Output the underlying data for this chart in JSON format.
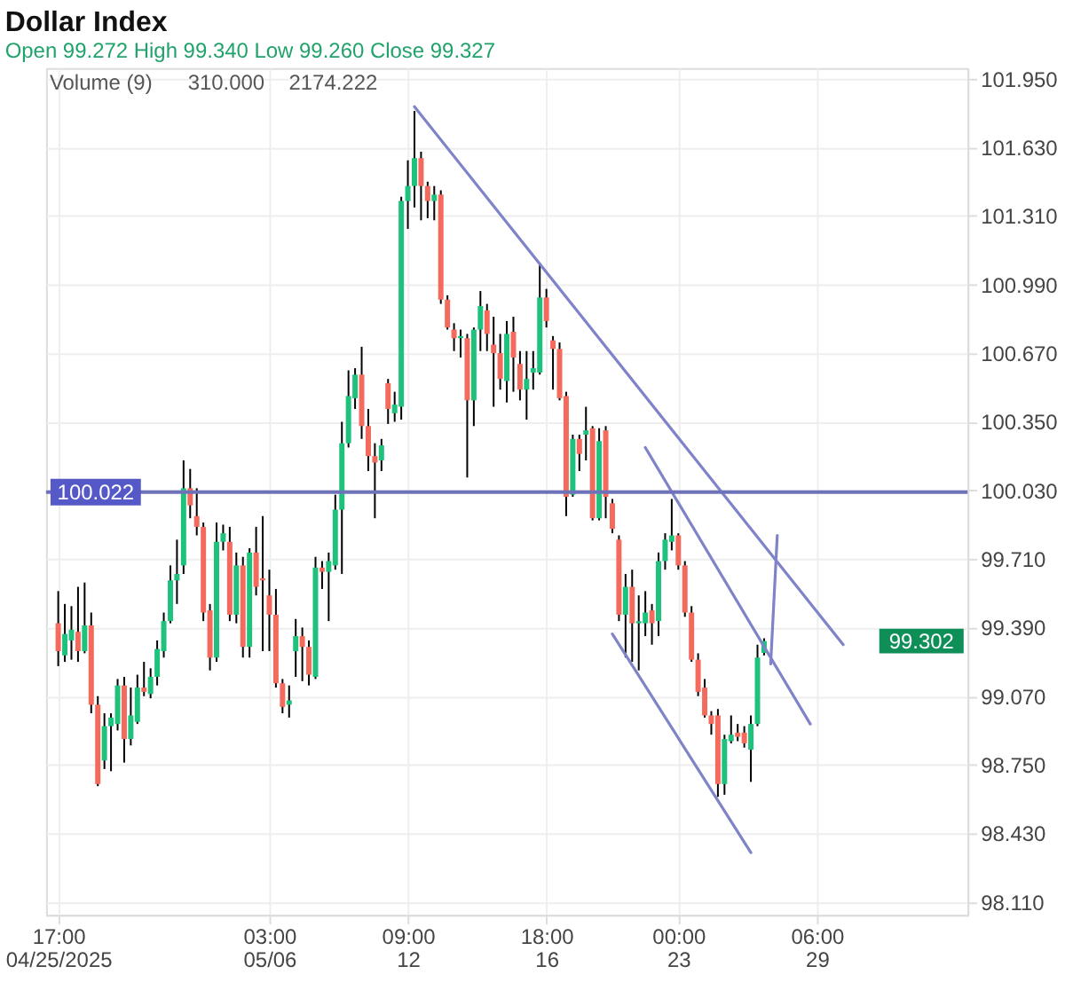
{
  "chart_data": {
    "type": "candlestick",
    "title": "Dollar Index",
    "subtitle": "Open 99.272   High 99.340   Low 99.260   Close 99.327",
    "annotations": [
      "Volume (9)",
      "310.000",
      "2174.222",
      "99.302"
    ],
    "categories": [
      "17:00\n04/25/2025",
      null,
      null,
      null,
      null,
      null,
      null,
      null,
      null,
      null,
      null,
      null,
      null,
      null,
      null,
      null,
      null,
      null,
      null,
      null,
      null,
      null,
      null,
      null,
      null,
      null,
      null,
      null,
      null,
      null,
      null,
      null,
      "03:00\n05/06",
      null,
      null,
      null,
      null,
      null,
      null,
      null,
      null,
      null,
      null,
      null,
      null,
      null,
      null,
      null,
      null,
      null,
      null,
      null,
      null,
      "09:00\n12",
      null,
      null,
      null,
      null,
      null,
      null,
      null,
      null,
      null,
      null,
      null,
      null,
      null,
      null,
      null,
      null,
      null,
      null,
      null,
      null,
      "18:00\n16",
      null,
      null,
      null,
      null,
      null,
      null,
      null,
      null,
      null,
      null,
      null,
      null,
      null,
      null,
      null,
      null,
      null,
      null,
      null,
      "00:00\n23",
      null,
      null,
      null,
      null,
      null,
      null,
      null,
      null,
      null,
      null,
      null,
      null,
      null,
      null,
      null,
      null,
      null,
      null,
      null,
      null,
      "06:00\n29",
      null,
      null,
      null,
      null,
      null,
      null,
      null,
      null,
      null,
      null,
      null,
      null,
      null,
      null,
      null,
      null,
      null,
      null,
      null,
      null,
      null
    ],
    "ylim": [
      98.05,
      102.0
    ],
    "yticks": [
      {
        "value": 98.11,
        "label": "98.110"
      },
      {
        "value": 98.43,
        "label": "98.430"
      },
      {
        "value": 98.75,
        "label": "98.750"
      },
      {
        "value": 99.07,
        "label": "99.070"
      },
      {
        "value": 99.39,
        "label": "99.390"
      },
      {
        "value": 99.71,
        "label": "99.710"
      },
      {
        "value": 100.03,
        "label": "100.030"
      },
      {
        "value": 100.35,
        "label": "100.350"
      },
      {
        "value": 100.67,
        "label": "100.670"
      },
      {
        "value": 100.99,
        "label": "100.990"
      },
      {
        "value": 101.31,
        "label": "101.310"
      },
      {
        "value": 101.63,
        "label": "101.630"
      },
      {
        "value": 101.95,
        "label": "101.950"
      }
    ],
    "grid": true,
    "line_style": "solid",
    "ref_lines": [
      {
        "axis": "y",
        "value": 100.022,
        "label": "100.022",
        "color": "#6e72b8"
      }
    ],
    "ohlc": [
      [
        99.41,
        99.56,
        99.21,
        99.28
      ],
      [
        99.26,
        99.5,
        99.23,
        99.36
      ],
      [
        99.33,
        99.49,
        99.24,
        99.38
      ],
      [
        99.37,
        99.58,
        99.23,
        99.28
      ],
      [
        99.28,
        99.6,
        99.27,
        99.4
      ],
      [
        99.4,
        99.46,
        98.99,
        99.03
      ],
      [
        99.03,
        99.07,
        98.65,
        98.66
      ],
      [
        98.77,
        98.99,
        98.73,
        98.93
      ],
      [
        98.93,
        98.99,
        98.72,
        98.97
      ],
      [
        98.94,
        99.15,
        98.91,
        99.12
      ],
      [
        99.12,
        99.16,
        98.76,
        98.87
      ],
      [
        98.87,
        99.11,
        98.84,
        98.98
      ],
      [
        98.95,
        99.17,
        98.94,
        99.11
      ],
      [
        99.11,
        99.23,
        99.07,
        99.09
      ],
      [
        99.08,
        99.2,
        99.06,
        99.16
      ],
      [
        99.16,
        99.33,
        99.12,
        99.29
      ],
      [
        99.28,
        99.46,
        99.25,
        99.42
      ],
      [
        99.42,
        99.68,
        99.41,
        99.61
      ],
      [
        99.61,
        99.8,
        99.5,
        99.64
      ],
      [
        99.68,
        100.17,
        99.64,
        100.04
      ],
      [
        100.04,
        100.13,
        99.9,
        99.96
      ],
      [
        99.91,
        100.04,
        99.82,
        99.86
      ],
      [
        99.86,
        99.88,
        99.42,
        99.46
      ],
      [
        99.47,
        99.5,
        99.19,
        99.25
      ],
      [
        99.25,
        99.88,
        99.23,
        99.79
      ],
      [
        99.79,
        99.87,
        99.75,
        99.83
      ],
      [
        99.79,
        99.86,
        99.42,
        99.45
      ],
      [
        99.45,
        99.74,
        99.41,
        99.68
      ],
      [
        99.68,
        99.72,
        99.25,
        99.3
      ],
      [
        99.3,
        99.76,
        99.25,
        99.74
      ],
      [
        99.74,
        99.86,
        99.54,
        99.58
      ],
      [
        99.62,
        99.91,
        99.28,
        99.61
      ],
      [
        99.54,
        99.66,
        99.28,
        99.45
      ],
      [
        99.45,
        99.57,
        99.11,
        99.13
      ],
      [
        99.13,
        99.15,
        98.99,
        99.02
      ],
      [
        99.03,
        99.12,
        98.97,
        99.05
      ],
      [
        99.28,
        99.43,
        99.16,
        99.35
      ],
      [
        99.35,
        99.39,
        99.14,
        99.3
      ],
      [
        99.3,
        99.33,
        99.12,
        99.17
      ],
      [
        99.16,
        99.72,
        99.15,
        99.67
      ],
      [
        99.67,
        99.7,
        99.57,
        99.65
      ],
      [
        99.65,
        99.74,
        99.42,
        99.7
      ],
      [
        99.68,
        100.01,
        99.66,
        99.94
      ],
      [
        99.94,
        100.35,
        99.64,
        100.25
      ],
      [
        100.25,
        100.59,
        100.23,
        100.47
      ],
      [
        100.46,
        100.6,
        100.41,
        100.57
      ],
      [
        100.57,
        100.7,
        100.27,
        100.33
      ],
      [
        100.33,
        100.41,
        100.12,
        100.19
      ],
      [
        100.19,
        100.25,
        99.9,
        100.16
      ],
      [
        100.17,
        100.27,
        100.12,
        100.24
      ],
      [
        100.53,
        100.55,
        100.34,
        100.41
      ],
      [
        100.39,
        100.49,
        100.35,
        100.43
      ],
      [
        100.42,
        101.4,
        100.36,
        101.38
      ],
      [
        101.38,
        101.57,
        101.25,
        101.45
      ],
      [
        101.45,
        101.8,
        101.35,
        101.58
      ],
      [
        101.58,
        101.61,
        101.29,
        101.45
      ],
      [
        101.45,
        101.47,
        101.3,
        101.38
      ],
      [
        101.38,
        101.45,
        101.29,
        101.41
      ],
      [
        101.41,
        101.43,
        100.9,
        100.92
      ],
      [
        100.92,
        100.94,
        100.78,
        100.79
      ],
      [
        100.78,
        100.81,
        100.68,
        100.74
      ],
      [
        100.74,
        100.78,
        100.65,
        100.75
      ],
      [
        100.74,
        100.76,
        100.09,
        100.45
      ],
      [
        100.45,
        100.79,
        100.33,
        100.78
      ],
      [
        100.78,
        100.96,
        100.68,
        100.89
      ],
      [
        100.87,
        100.9,
        100.68,
        100.76
      ],
      [
        100.71,
        100.84,
        100.42,
        100.67
      ],
      [
        100.67,
        100.76,
        100.5,
        100.55
      ],
      [
        100.54,
        100.82,
        100.44,
        100.76
      ],
      [
        100.77,
        100.84,
        100.49,
        100.65
      ],
      [
        100.62,
        100.68,
        100.45,
        100.5
      ],
      [
        100.5,
        100.68,
        100.36,
        100.55
      ],
      [
        100.58,
        100.68,
        100.5,
        100.6
      ],
      [
        100.58,
        101.09,
        100.57,
        100.93
      ],
      [
        100.93,
        100.97,
        100.79,
        100.82
      ],
      [
        100.73,
        100.75,
        100.5,
        100.69
      ],
      [
        100.69,
        100.72,
        100.45,
        100.46
      ],
      [
        100.47,
        100.49,
        99.91,
        100.0
      ],
      [
        100.01,
        100.29,
        100.0,
        100.27
      ],
      [
        100.27,
        100.29,
        100.12,
        100.2
      ],
      [
        100.29,
        100.42,
        100.17,
        100.31
      ],
      [
        100.32,
        100.33,
        99.89,
        99.9
      ],
      [
        99.9,
        100.32,
        99.89,
        100.26
      ],
      [
        100.31,
        100.33,
        99.9,
        100.0
      ],
      [
        99.97,
        99.99,
        99.83,
        99.85
      ],
      [
        99.8,
        99.82,
        99.42,
        99.45
      ],
      [
        99.45,
        99.64,
        99.25,
        99.58
      ],
      [
        99.58,
        99.66,
        99.23,
        99.41
      ],
      [
        99.41,
        99.54,
        99.19,
        99.42
      ],
      [
        99.41,
        99.56,
        99.35,
        99.46
      ],
      [
        99.47,
        99.5,
        99.31,
        99.41
      ],
      [
        99.42,
        99.74,
        99.35,
        99.7
      ],
      [
        99.7,
        99.83,
        99.66,
        99.8
      ],
      [
        99.79,
        99.99,
        99.75,
        99.82
      ],
      [
        99.82,
        99.83,
        99.66,
        99.68
      ],
      [
        99.68,
        99.7,
        99.44,
        99.46
      ],
      [
        99.46,
        99.49,
        99.23,
        99.24
      ],
      [
        99.24,
        99.27,
        99.07,
        99.09
      ],
      [
        99.11,
        99.15,
        98.97,
        98.98
      ],
      [
        98.98,
        99.0,
        98.89,
        98.94
      ],
      [
        98.98,
        99.01,
        98.6,
        98.66
      ],
      [
        98.66,
        98.89,
        98.61,
        98.87
      ],
      [
        98.86,
        98.98,
        98.85,
        98.89
      ],
      [
        98.9,
        98.94,
        98.86,
        98.88
      ],
      [
        98.9,
        98.93,
        98.83,
        98.85
      ],
      [
        98.82,
        98.98,
        98.67,
        98.94
      ],
      [
        98.94,
        99.31,
        98.93,
        99.25
      ],
      [
        99.272,
        99.34,
        99.26,
        99.327
      ],
      null,
      null,
      null,
      null,
      null,
      null,
      null,
      null,
      null,
      null,
      null,
      null,
      null,
      null,
      null,
      null,
      null,
      null,
      null,
      null,
      null,
      null,
      null,
      null,
      null,
      null,
      null,
      null,
      null
    ],
    "colors": [
      "#f46b5d",
      "#1fc27d",
      "#1fc27d",
      "#f46b5d",
      "#1fc27d",
      "#f46b5d",
      "#f46b5d",
      "#1fc27d",
      "#1fc27d",
      "#1fc27d",
      "#f46b5d",
      "#1fc27d",
      "#1fc27d",
      "#f46b5d",
      "#1fc27d",
      "#1fc27d",
      "#1fc27d",
      "#1fc27d",
      "#1fc27d",
      "#1fc27d",
      "#f46b5d",
      "#f46b5d",
      "#f46b5d",
      "#f46b5d",
      "#1fc27d",
      "#1fc27d",
      "#f46b5d",
      "#1fc27d",
      "#f46b5d",
      "#1fc27d",
      "#f46b5d",
      "#f46b5d",
      "#f46b5d",
      "#f46b5d",
      "#f46b5d",
      "#1fc27d",
      "#1fc27d",
      "#f46b5d",
      "#f46b5d",
      "#1fc27d",
      "#f46b5d",
      "#1fc27d",
      "#1fc27d",
      "#1fc27d",
      "#1fc27d",
      "#1fc27d",
      "#f46b5d",
      "#f46b5d",
      "#f46b5d",
      "#1fc27d",
      "#f46b5d",
      "#1fc27d",
      "#1fc27d",
      "#1fc27d",
      "#1fc27d",
      "#f46b5d",
      "#f46b5d",
      "#1fc27d",
      "#f46b5d",
      "#f46b5d",
      "#f46b5d",
      "#1fc27d",
      "#f46b5d",
      "#1fc27d",
      "#1fc27d",
      "#f46b5d",
      "#f46b5d",
      "#f46b5d",
      "#1fc27d",
      "#f46b5d",
      "#f46b5d",
      "#1fc27d",
      "#1fc27d",
      "#1fc27d",
      "#f46b5d",
      "#f46b5d",
      "#f46b5d",
      "#f46b5d",
      "#1fc27d",
      "#f46b5d",
      "#1fc27d",
      "#f46b5d",
      "#1fc27d",
      "#f46b5d",
      "#f46b5d",
      "#f46b5d",
      "#1fc27d",
      "#f46b5d",
      "#1fc27d",
      "#1fc27d",
      "#f46b5d",
      "#1fc27d",
      "#1fc27d",
      "#1fc27d",
      "#f46b5d",
      "#f46b5d",
      "#f46b5d",
      "#f46b5d",
      "#f46b5d",
      "#f46b5d",
      "#f46b5d",
      "#1fc27d",
      "#1fc27d",
      "#f46b5d",
      "#f46b5d",
      "#1fc27d",
      "#1fc27d",
      "#1fc27d",
      null,
      null,
      null,
      null,
      null,
      null,
      null,
      null,
      null,
      null,
      null,
      null,
      null,
      null,
      null,
      null,
      null,
      null,
      null,
      null,
      null,
      null,
      null,
      null,
      null,
      null,
      null,
      null,
      null
    ],
    "series": [
      {
        "type": "line",
        "color": "#7f83c8",
        "values": [
          null,
          null,
          null,
          null,
          null,
          null,
          null,
          null,
          null,
          null,
          null,
          null,
          null,
          null,
          null,
          null,
          null,
          null,
          null,
          null,
          null,
          null,
          null,
          null,
          null,
          null,
          null,
          null,
          null,
          null,
          null,
          null,
          null,
          null,
          null,
          null,
          null,
          null,
          null,
          null,
          null,
          null,
          null,
          null,
          null,
          null,
          null,
          null,
          null,
          null,
          null,
          null,
          null,
          null,
          101.82,
          null,
          null,
          null,
          null,
          null,
          null,
          null,
          null,
          null,
          null,
          null,
          null,
          null,
          null,
          null,
          null,
          null,
          null,
          null,
          null,
          null,
          null,
          null,
          null,
          null,
          null,
          null,
          null,
          null,
          null,
          null,
          null,
          null,
          null,
          null,
          null,
          null,
          null,
          null,
          null,
          null,
          null,
          null,
          null,
          null,
          null,
          null,
          null,
          null,
          null,
          null,
          null,
          null,
          null,
          null,
          null,
          null,
          null,
          null,
          null,
          null,
          null,
          null,
          null,
          99.31,
          null,
          null,
          null,
          null,
          null,
          null,
          null,
          null,
          null,
          null,
          null,
          null,
          null,
          null,
          null,
          null,
          null
        ]
      },
      {
        "type": "line",
        "color": "#7f83c8",
        "values": [
          null,
          null,
          null,
          null,
          null,
          null,
          null,
          null,
          null,
          null,
          null,
          null,
          null,
          null,
          null,
          null,
          null,
          null,
          null,
          null,
          null,
          null,
          null,
          null,
          null,
          null,
          null,
          null,
          null,
          null,
          null,
          null,
          null,
          null,
          null,
          null,
          null,
          null,
          null,
          null,
          null,
          null,
          null,
          null,
          null,
          null,
          null,
          null,
          null,
          null,
          null,
          null,
          null,
          null,
          null,
          null,
          null,
          null,
          null,
          null,
          null,
          null,
          null,
          null,
          null,
          null,
          null,
          null,
          null,
          null,
          null,
          null,
          null,
          null,
          null,
          null,
          null,
          null,
          null,
          null,
          null,
          null,
          null,
          null,
          null,
          null,
          null,
          null,
          null,
          100.23,
          null,
          null,
          null,
          null,
          null,
          null,
          null,
          null,
          null,
          null,
          null,
          null,
          null,
          null,
          null,
          null,
          null,
          null,
          null,
          null,
          null,
          null,
          null,
          null,
          98.94,
          null,
          null,
          null,
          null,
          null,
          null,
          null,
          null,
          null,
          null,
          null,
          null,
          null,
          null,
          null,
          null,
          null,
          null,
          null,
          null,
          null,
          null
        ]
      },
      {
        "type": "line",
        "color": "#7f83c8",
        "values": [
          null,
          null,
          null,
          null,
          null,
          null,
          null,
          null,
          null,
          null,
          null,
          null,
          null,
          null,
          null,
          null,
          null,
          null,
          null,
          null,
          null,
          null,
          null,
          null,
          null,
          null,
          null,
          null,
          null,
          null,
          null,
          null,
          null,
          null,
          null,
          null,
          null,
          null,
          null,
          null,
          null,
          null,
          null,
          null,
          null,
          null,
          null,
          null,
          null,
          null,
          null,
          null,
          null,
          null,
          null,
          null,
          null,
          null,
          null,
          null,
          null,
          null,
          null,
          null,
          null,
          null,
          null,
          null,
          null,
          null,
          null,
          null,
          null,
          null,
          null,
          null,
          null,
          null,
          null,
          null,
          null,
          null,
          null,
          null,
          99.36,
          null,
          null,
          null,
          null,
          null,
          null,
          null,
          null,
          null,
          null,
          null,
          null,
          null,
          null,
          null,
          null,
          null,
          null,
          null,
          null,
          98.34,
          null,
          null,
          null,
          null,
          null,
          null,
          null,
          null,
          null,
          null,
          null,
          null,
          null,
          null,
          null,
          null,
          null,
          null,
          null,
          null,
          null,
          null,
          null,
          null,
          null,
          null,
          null,
          null,
          null,
          null,
          null
        ]
      },
      {
        "type": "line",
        "color": "#7f83c8",
        "values": [
          null,
          null,
          null,
          null,
          null,
          null,
          null,
          null,
          null,
          null,
          null,
          null,
          null,
          null,
          null,
          null,
          null,
          null,
          null,
          null,
          null,
          null,
          null,
          null,
          null,
          null,
          null,
          null,
          null,
          null,
          null,
          null,
          null,
          null,
          null,
          null,
          null,
          null,
          null,
          null,
          null,
          null,
          null,
          null,
          null,
          null,
          null,
          null,
          null,
          null,
          null,
          null,
          null,
          null,
          null,
          null,
          null,
          null,
          null,
          null,
          null,
          null,
          null,
          null,
          null,
          null,
          null,
          null,
          null,
          null,
          null,
          null,
          null,
          null,
          null,
          null,
          null,
          null,
          null,
          null,
          null,
          null,
          null,
          null,
          null,
          null,
          null,
          null,
          null,
          null,
          null,
          null,
          null,
          null,
          null,
          null,
          null,
          null,
          null,
          null,
          null,
          null,
          null,
          null,
          null,
          null,
          null,
          null,
          99.22,
          99.82,
          null,
          null,
          null,
          null,
          null,
          null,
          null,
          null,
          null,
          null,
          null,
          null,
          null,
          null,
          null,
          null,
          null,
          null,
          null,
          null,
          null,
          null,
          null,
          null,
          null,
          null,
          null
        ]
      }
    ]
  }
}
